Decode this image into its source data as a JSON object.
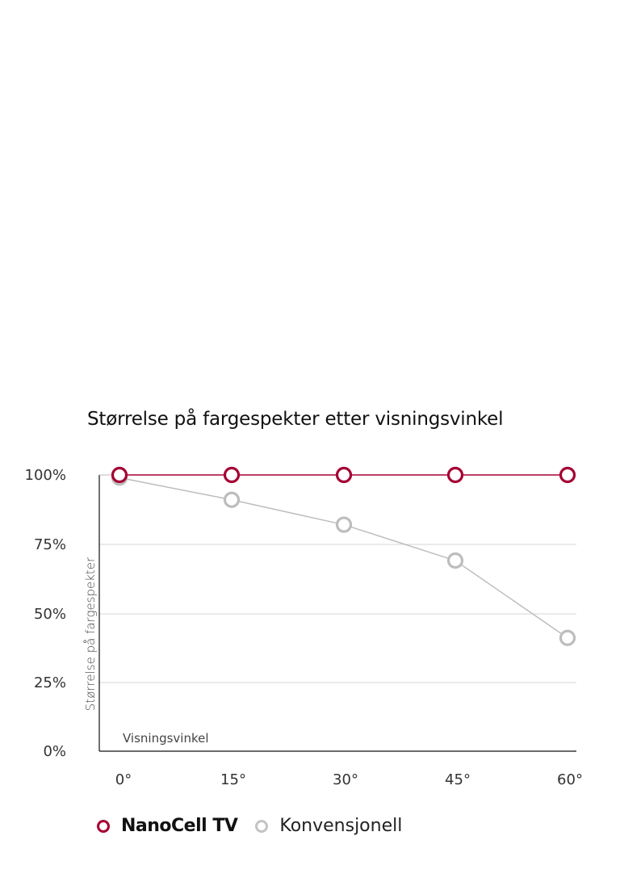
{
  "chart_data": {
    "type": "line",
    "title": "Størrelse på fargespekter etter visningsvinkel",
    "xlabel": "Visningsvinkel",
    "ylabel": "Størrelse på fargespekter",
    "categories": [
      "0°",
      "15°",
      "30°",
      "45°",
      "60°"
    ],
    "x": [
      0,
      15,
      30,
      45,
      60
    ],
    "yticks": [
      "100%",
      "75%",
      "50%",
      "25%",
      "0%"
    ],
    "ylim": [
      0,
      100
    ],
    "grid": "horizontal",
    "legend_position": "bottom",
    "series": [
      {
        "name": "NanoCell TV",
        "color": "#a50034",
        "values": [
          100,
          100,
          100,
          100,
          100
        ]
      },
      {
        "name": "Konvensjonell",
        "color": "#bdbdbd",
        "values": [
          99,
          91,
          82,
          69,
          41
        ]
      }
    ]
  },
  "colors": {
    "nanocell": "#a50034",
    "conventional": "#bdbdbd",
    "grid": "#dddddd",
    "axis": "#111111"
  }
}
